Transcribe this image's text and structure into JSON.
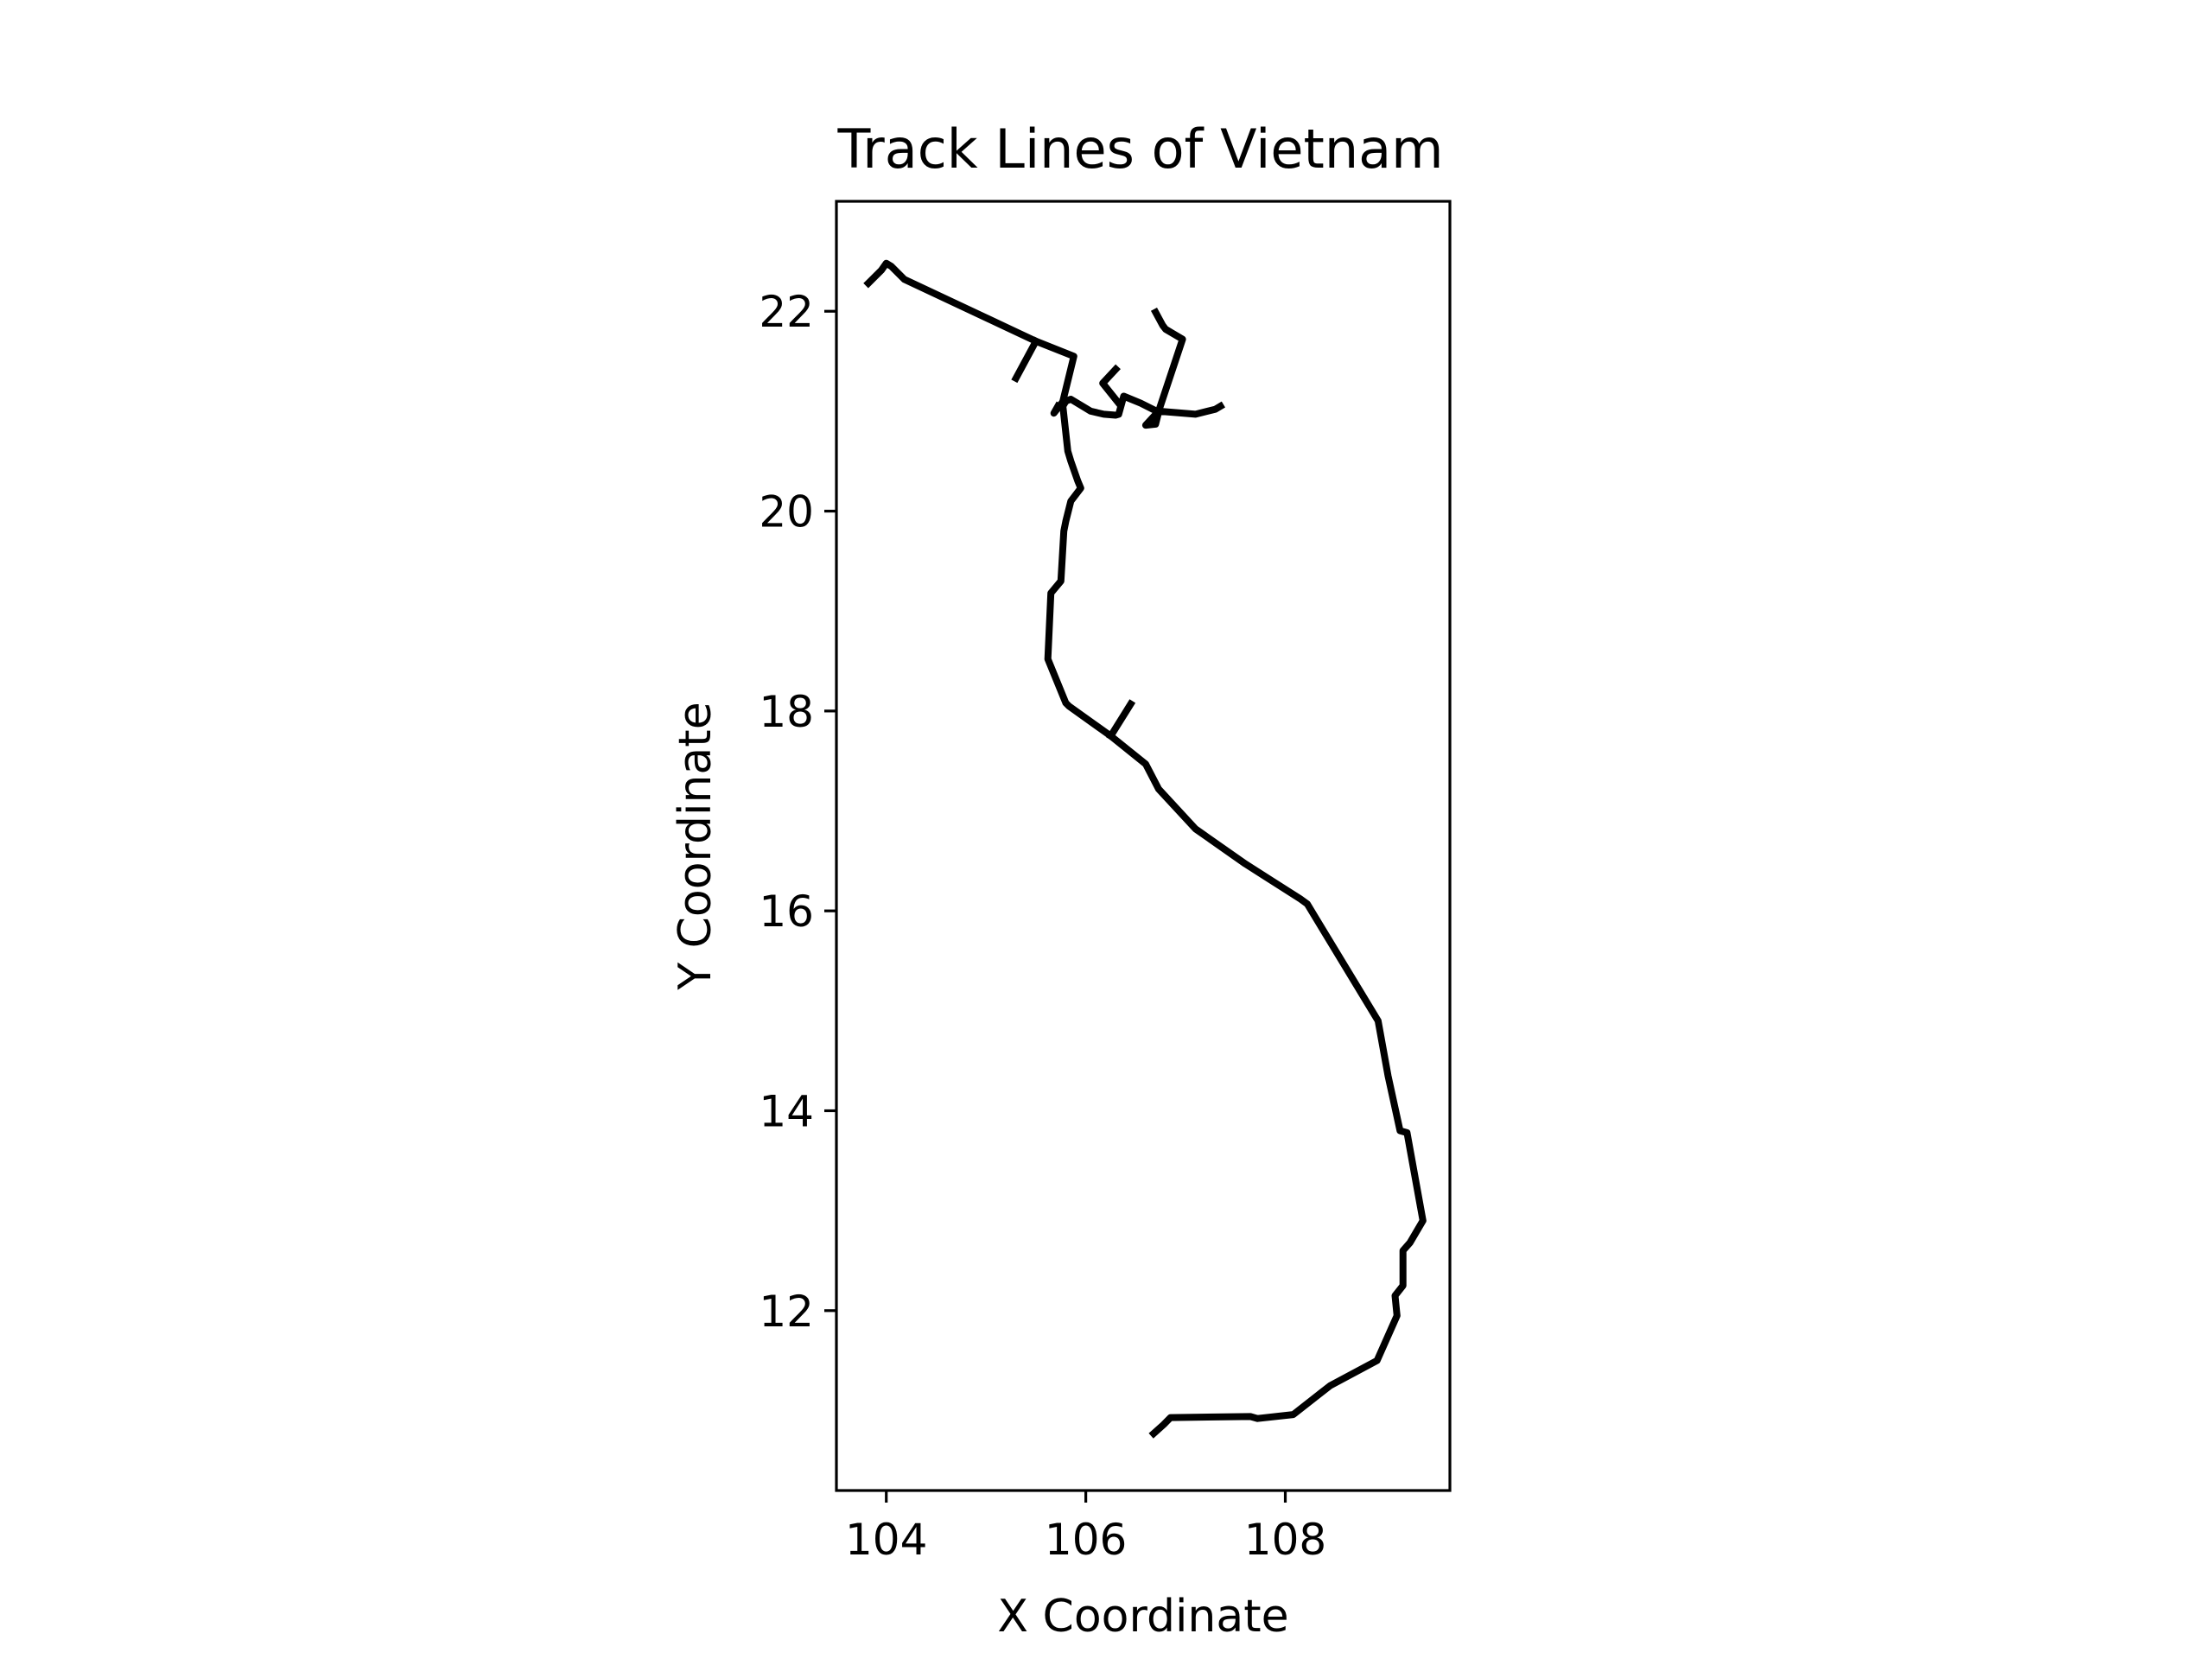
{
  "chart_data": {
    "type": "line",
    "title": "Track Lines of Vietnam",
    "xlabel": "X Coordinate",
    "ylabel": "Y Coordinate",
    "xlim": [
      103.5,
      109.65
    ],
    "ylim": [
      10.2,
      23.1
    ],
    "xticks": [
      104,
      106,
      108
    ],
    "yticks": [
      12,
      14,
      16,
      18,
      20,
      22
    ],
    "grid": false,
    "legend": "none",
    "line_color": "#000000",
    "series": [
      {
        "points": [
          [
            106.68,
            10.77
          ],
          [
            106.78,
            10.86
          ],
          [
            106.85,
            10.93
          ],
          [
            107.65,
            10.94
          ],
          [
            107.72,
            10.92
          ],
          [
            108.08,
            10.96
          ],
          [
            108.45,
            11.25
          ],
          [
            108.92,
            11.5
          ],
          [
            109.12,
            11.95
          ],
          [
            109.1,
            12.15
          ],
          [
            109.18,
            12.25
          ],
          [
            109.18,
            12.6
          ],
          [
            109.25,
            12.68
          ],
          [
            109.38,
            12.9
          ],
          [
            109.22,
            13.78
          ],
          [
            109.15,
            13.8
          ],
          [
            109.03,
            14.35
          ],
          [
            108.93,
            14.9
          ],
          [
            108.22,
            16.07
          ],
          [
            108.15,
            16.12
          ],
          [
            107.6,
            16.47
          ],
          [
            107.1,
            16.82
          ],
          [
            106.73,
            17.22
          ],
          [
            106.6,
            17.47
          ],
          [
            106.25,
            17.75
          ],
          [
            105.83,
            18.05
          ],
          [
            105.8,
            18.08
          ],
          [
            105.62,
            18.52
          ],
          [
            105.65,
            19.18
          ],
          [
            105.75,
            19.3
          ],
          [
            105.78,
            19.8
          ],
          [
            105.8,
            19.9
          ],
          [
            105.85,
            20.1
          ],
          [
            105.95,
            20.23
          ],
          [
            105.92,
            20.3
          ],
          [
            105.85,
            20.5
          ],
          [
            105.82,
            20.6
          ],
          [
            105.77,
            21.05
          ],
          [
            105.8,
            21.1
          ],
          [
            105.85,
            21.12
          ],
          [
            106.05,
            21.0
          ],
          [
            106.18,
            20.97
          ],
          [
            106.3,
            20.96
          ],
          [
            106.33,
            20.97
          ],
          [
            106.38,
            21.15
          ],
          [
            106.55,
            21.08
          ],
          [
            106.73,
            20.99
          ],
          [
            106.7,
            20.87
          ],
          [
            106.6,
            20.86
          ],
          [
            106.73,
            21.0
          ],
          [
            107.1,
            20.97
          ],
          [
            107.3,
            21.02
          ],
          [
            107.35,
            21.05
          ]
        ]
      },
      {
        "points": [
          [
            106.73,
            21.0
          ],
          [
            106.97,
            21.72
          ],
          [
            106.8,
            21.82
          ],
          [
            106.77,
            21.86
          ],
          [
            106.7,
            21.99
          ]
        ]
      },
      {
        "points": [
          [
            103.82,
            22.28
          ],
          [
            103.95,
            22.41
          ],
          [
            104.0,
            22.48
          ],
          [
            104.05,
            22.45
          ],
          [
            104.18,
            22.32
          ],
          [
            105.5,
            21.7
          ],
          [
            105.88,
            21.55
          ],
          [
            105.77,
            21.1
          ]
        ]
      },
      {
        "points": [
          [
            105.5,
            21.7
          ],
          [
            105.3,
            21.33
          ]
        ]
      },
      {
        "points": [
          [
            105.75,
            21.07
          ],
          [
            105.68,
            20.98
          ],
          [
            105.72,
            21.05
          ]
        ]
      },
      {
        "points": [
          [
            106.33,
            21.08
          ],
          [
            106.17,
            21.28
          ],
          [
            106.3,
            21.42
          ]
        ]
      },
      {
        "points": [
          [
            106.25,
            17.75
          ],
          [
            106.45,
            18.07
          ]
        ]
      }
    ]
  }
}
